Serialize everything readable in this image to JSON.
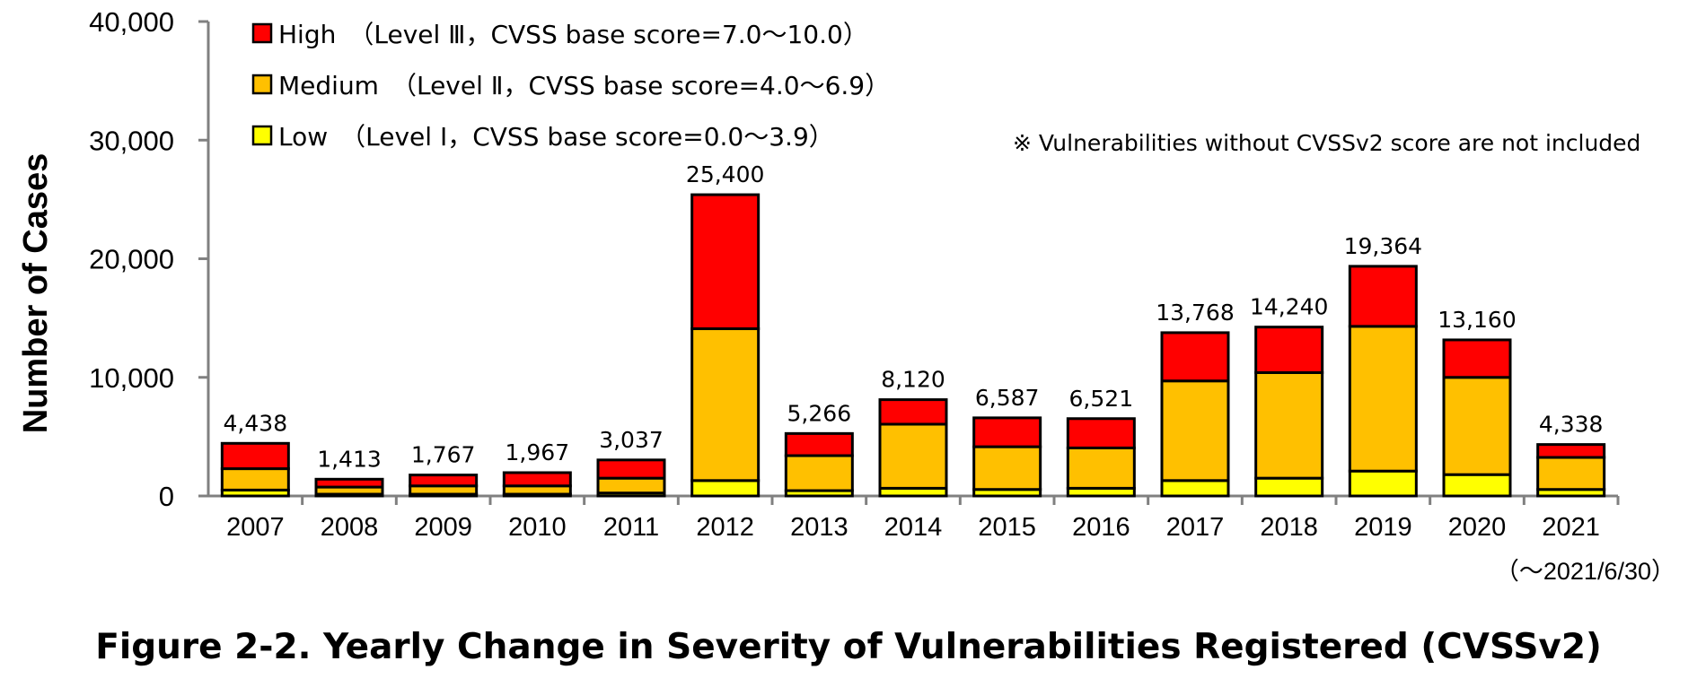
{
  "chart_data": {
    "type": "bar",
    "stacked": true,
    "title": "Figure 2-2. Yearly Change in Severity of Vulnerabilities Registered (CVSSv2)",
    "ylabel": "Number of Cases",
    "xlabel": "",
    "ylim": [
      0,
      40000
    ],
    "yticks": [
      "0",
      "10,000",
      "20,000",
      "30,000",
      "40,000"
    ],
    "ytick_values": [
      0,
      10000,
      20000,
      30000,
      40000
    ],
    "categories": [
      "2007",
      "2008",
      "2009",
      "2010",
      "2011",
      "2012",
      "2013",
      "2014",
      "2015",
      "2016",
      "2017",
      "2018",
      "2019",
      "2020",
      "2021"
    ],
    "series": [
      {
        "name": "Low　（Level Ⅰ，CVSS base score=0.0～3.9）",
        "color": "#FFFF00",
        "values": [
          500,
          150,
          150,
          150,
          250,
          1300,
          450,
          650,
          550,
          650,
          1300,
          1500,
          2100,
          1800,
          550
        ]
      },
      {
        "name": "Medium　（Level Ⅱ，CVSS base score=4.0～6.9）",
        "color": "#FFC000",
        "values": [
          1800,
          600,
          700,
          700,
          1250,
          12800,
          2950,
          5400,
          3600,
          3400,
          8400,
          8900,
          12200,
          8200,
          2700
        ]
      },
      {
        "name": "High　（Level Ⅲ，CVSS base score=7.0～10.0）",
        "color": "#FF0000",
        "values": [
          2138,
          663,
          917,
          1117,
          1537,
          11300,
          1866,
          2070,
          2437,
          2471,
          4068,
          3840,
          5064,
          3160,
          1088
        ]
      }
    ],
    "totals": [
      "4,438",
      "1,413",
      "1,767",
      "1,967",
      "3,037",
      "25,400",
      "5,266",
      "8,120",
      "6,587",
      "6,521",
      "13,768",
      "14,240",
      "19,364",
      "13,160",
      "4,338"
    ],
    "legend_position": "top-left",
    "grid": false,
    "note": "※ Vulnerabilities without CVSSv2 score are not included",
    "period_note": "（～2021/6/30）"
  }
}
